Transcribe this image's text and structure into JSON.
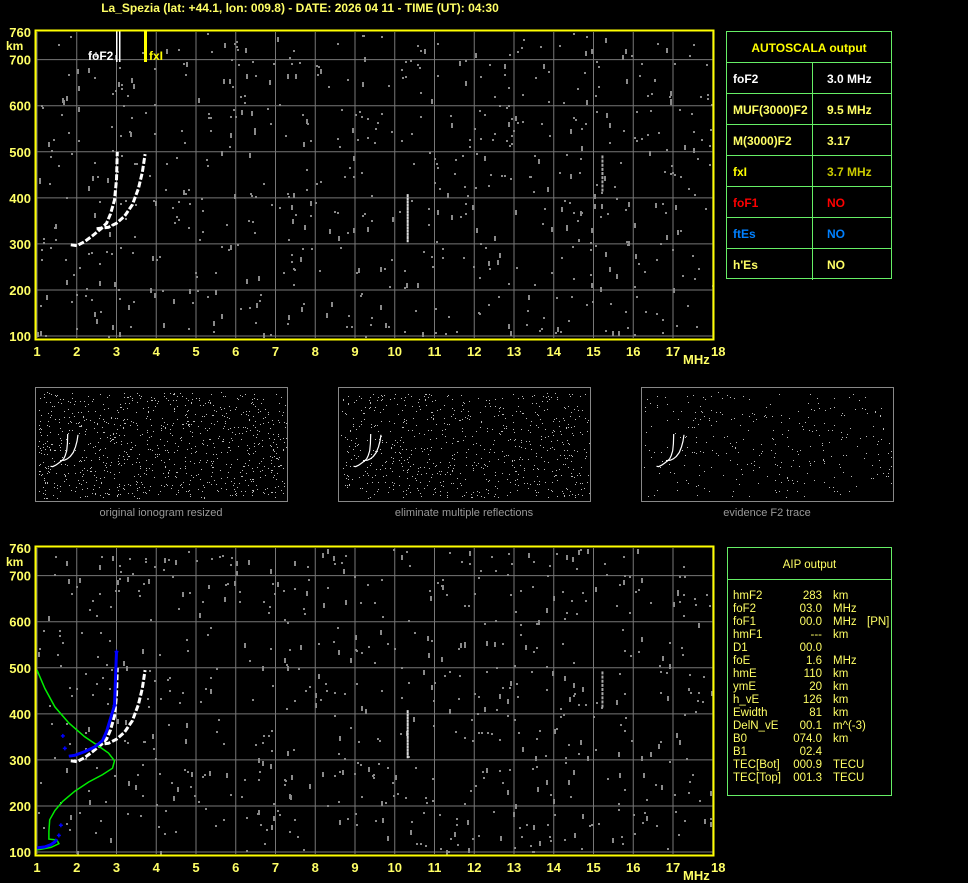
{
  "header": {
    "title": "La_Spezia (lat: +44.1, lon: 009.8) - DATE: 2026 04 11 - TIME (UT): 04:30"
  },
  "colors": {
    "axis": "#ffff00",
    "grid": "#777777",
    "noise": "#8a8a8a",
    "trace": "#ffffff",
    "profile": "#00ee00",
    "aip_trace": "#0000ff",
    "table_border": "#66ee66",
    "foF1": "#ff0000",
    "ftEs": "#0080ff",
    "fxI": "#cccc00"
  },
  "chart_data": [
    {
      "type": "scatter",
      "name_id": "ionogram-autoscala",
      "xlabel": "MHz",
      "ylabel": "km",
      "xlim": [
        1,
        18
      ],
      "ylim": [
        100,
        760
      ],
      "xticks": [
        "1",
        "2",
        "3",
        "4",
        "5",
        "6",
        "7",
        "8",
        "9",
        "10",
        "11",
        "12",
        "13",
        "14",
        "15",
        "16",
        "17",
        "18"
      ],
      "yticks": [
        "100",
        "200",
        "300",
        "400",
        "500",
        "600",
        "700",
        "760"
      ],
      "grid": true,
      "markers": [
        {
          "label": "foF2",
          "x": 3.0,
          "color": "#ffffff"
        },
        {
          "label": "fxI",
          "x": 3.7,
          "color": "#ffff00"
        }
      ],
      "traces": [
        {
          "mode": "ordinary",
          "points": [
            [
              1.85,
              298
            ],
            [
              2.0,
              296
            ],
            [
              2.2,
              305
            ],
            [
              2.4,
              318
            ],
            [
              2.6,
              332
            ],
            [
              2.75,
              345
            ],
            [
              2.85,
              365
            ],
            [
              2.95,
              395
            ],
            [
              3.0,
              440
            ],
            [
              3.02,
              500
            ]
          ]
        },
        {
          "mode": "extraordinary",
          "points": [
            [
              2.5,
              333
            ],
            [
              2.8,
              336
            ],
            [
              3.0,
              345
            ],
            [
              3.2,
              360
            ],
            [
              3.4,
              385
            ],
            [
              3.55,
              420
            ],
            [
              3.65,
              455
            ],
            [
              3.72,
              495
            ]
          ]
        }
      ]
    },
    {
      "type": "line",
      "name_id": "ionogram-aip",
      "xlabel": "MHz",
      "ylabel": "km",
      "xlim": [
        1,
        18
      ],
      "ylim": [
        100,
        760
      ],
      "xticks": [
        "1",
        "2",
        "3",
        "4",
        "5",
        "6",
        "7",
        "8",
        "9",
        "10",
        "11",
        "12",
        "13",
        "14",
        "15",
        "16",
        "17",
        "18"
      ],
      "yticks": [
        "100",
        "200",
        "300",
        "400",
        "500",
        "600",
        "700",
        "760"
      ],
      "grid": true,
      "profile": [
        [
          1.0,
          495
        ],
        [
          1.2,
          455
        ],
        [
          1.45,
          415
        ],
        [
          1.8,
          380
        ],
        [
          2.2,
          350
        ],
        [
          2.55,
          330
        ],
        [
          2.8,
          315
        ],
        [
          2.95,
          298
        ],
        [
          2.9,
          282
        ],
        [
          2.65,
          268
        ],
        [
          2.3,
          252
        ],
        [
          1.95,
          232
        ],
        [
          1.65,
          210
        ],
        [
          1.45,
          190
        ],
        [
          1.32,
          170
        ],
        [
          1.3,
          145
        ],
        [
          1.3,
          128
        ],
        [
          1.5,
          126
        ],
        [
          1.55,
          118
        ],
        [
          1.35,
          110
        ],
        [
          1.1,
          106
        ],
        [
          1.0,
          105
        ]
      ],
      "aip_trace": [
        [
          1.0,
          109
        ],
        [
          1.2,
          111
        ],
        [
          1.35,
          116
        ],
        [
          1.45,
          122
        ],
        [
          1.5,
          128
        ],
        [
          1.8,
          308
        ],
        [
          1.95,
          310
        ],
        [
          2.2,
          318
        ],
        [
          2.45,
          328
        ],
        [
          2.65,
          342
        ],
        [
          2.75,
          362
        ],
        [
          2.85,
          390
        ],
        [
          2.95,
          418
        ],
        [
          3.0,
          535
        ]
      ],
      "aip_crosses": [
        [
          1.6,
          158
        ],
        [
          1.55,
          136
        ],
        [
          1.65,
          352
        ],
        [
          1.7,
          325
        ],
        [
          2.95,
          418
        ],
        [
          3.0,
          535
        ]
      ]
    }
  ],
  "autoscala": {
    "title": "AUTOSCALA output",
    "rows": [
      {
        "key": "foF2",
        "value": "3.0 MHz",
        "color": "#ffffff"
      },
      {
        "key": "MUF(3000)F2",
        "value": "9.5 MHz",
        "color": "#ffff66"
      },
      {
        "key": "M(3000)F2",
        "value": "3.17",
        "color": "#ffff66"
      },
      {
        "key": "fxI",
        "value": "3.7 MHz",
        "color": "#ffff00",
        "value_color": "#cccc00"
      },
      {
        "key": "foF1",
        "value": "NO",
        "color": "#ff0000"
      },
      {
        "key": "ftEs",
        "value": "NO",
        "color": "#0080ff"
      },
      {
        "key": "h'Es",
        "value": "NO",
        "color": "#ffff66"
      }
    ]
  },
  "aip": {
    "title": "AIP output",
    "rows": [
      {
        "k": "hmF2",
        "v": "283",
        "u": "km"
      },
      {
        "k": "foF2",
        "v": "03.0",
        "u": "MHz"
      },
      {
        "k": "foF1",
        "v": "00.0",
        "u": "MHz",
        "extra": "[PN]"
      },
      {
        "k": "hmF1",
        "v": "---",
        "u": "km"
      },
      {
        "k": "D1",
        "v": "00.0",
        "u": ""
      },
      {
        "k": "foE",
        "v": "1.6",
        "u": "MHz"
      },
      {
        "k": "hmE",
        "v": "110",
        "u": "km"
      },
      {
        "k": "ymE",
        "v": "20",
        "u": "km"
      },
      {
        "k": "h_vE",
        "v": "126",
        "u": "km"
      },
      {
        "k": "Ewidth",
        "v": "81",
        "u": "km"
      },
      {
        "k": "DelN_vE",
        "v": "00.1",
        "u": "m^(-3)"
      },
      {
        "k": "B0",
        "v": "074.0",
        "u": "km"
      },
      {
        "k": "B1",
        "v": "02.4",
        "u": ""
      },
      {
        "k": "TEC[Bot]",
        "v": "000.9",
        "u": "TECU"
      },
      {
        "k": "TEC[Top]",
        "v": "001.3",
        "u": "TECU"
      }
    ]
  },
  "thumbnails": [
    {
      "caption": "original ionogram resized"
    },
    {
      "caption": "eliminate multiple reflections"
    },
    {
      "caption": "evidence F2 trace"
    }
  ]
}
